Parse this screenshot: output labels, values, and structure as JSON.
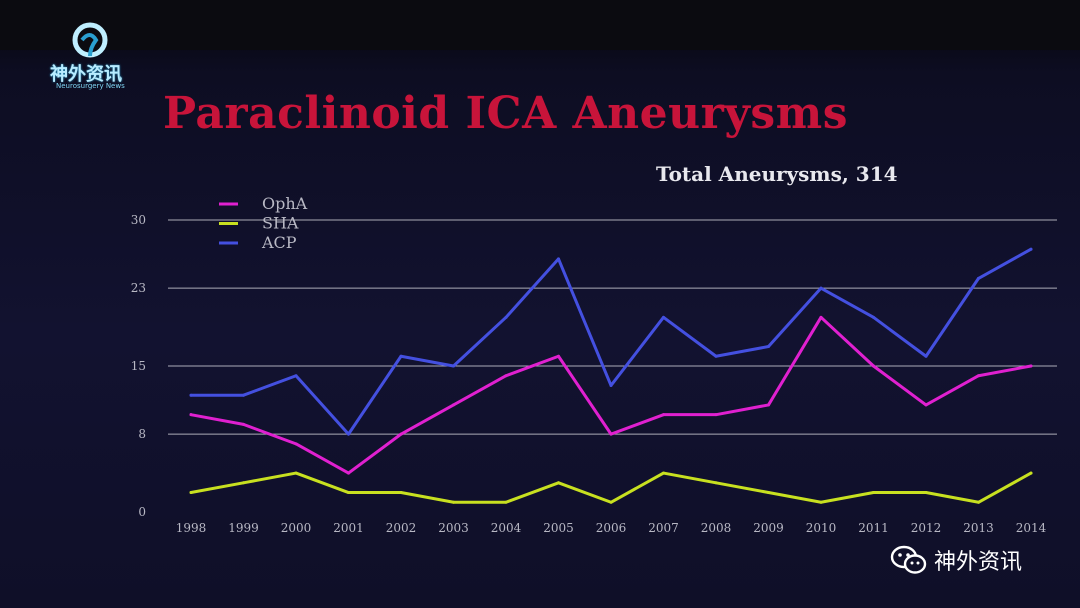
{
  "header": {
    "logo_text": "神外资讯",
    "logo_subtext": "Neurosurgery News"
  },
  "slide": {
    "title": "Paraclinoid ICA Aneurysms",
    "total_label": "Total Aneurysms, 314"
  },
  "watermark": {
    "text": "神外资讯",
    "icon": "wechat-icon"
  },
  "colors": {
    "title": "#c8143a",
    "OphA": "#e020d0",
    "SHA": "#c8e020",
    "ACP": "#4450e0",
    "grid": "#c8c8d0"
  },
  "chart_data": {
    "type": "line",
    "title": "Paraclinoid ICA Aneurysms",
    "subtitle": "Total Aneurysms, 314",
    "xlabel": "",
    "ylabel": "",
    "categories": [
      "1998",
      "1999",
      "2000",
      "2001",
      "2002",
      "2003",
      "2004",
      "2005",
      "2006",
      "2007",
      "2008",
      "2009",
      "2010",
      "2011",
      "2012",
      "2013",
      "2014"
    ],
    "yticks": [
      "0",
      "8",
      "15",
      "23",
      "30"
    ],
    "ylim": [
      0,
      30
    ],
    "grid": true,
    "legend_position": "top-left",
    "series": [
      {
        "name": "OphA",
        "color": "#e020d0",
        "values": [
          10,
          9,
          7,
          4,
          8,
          11,
          14,
          16,
          8,
          10,
          10,
          11,
          20,
          15,
          11,
          14,
          15
        ]
      },
      {
        "name": "SHA",
        "color": "#c8e020",
        "values": [
          2,
          3,
          4,
          2,
          2,
          1,
          1,
          3,
          1,
          4,
          3,
          2,
          1,
          2,
          2,
          1,
          4
        ]
      },
      {
        "name": "ACP",
        "color": "#4450e0",
        "values": [
          12,
          12,
          14,
          8,
          16,
          15,
          20,
          26,
          13,
          20,
          16,
          17,
          23,
          20,
          16,
          24,
          27
        ]
      }
    ]
  }
}
